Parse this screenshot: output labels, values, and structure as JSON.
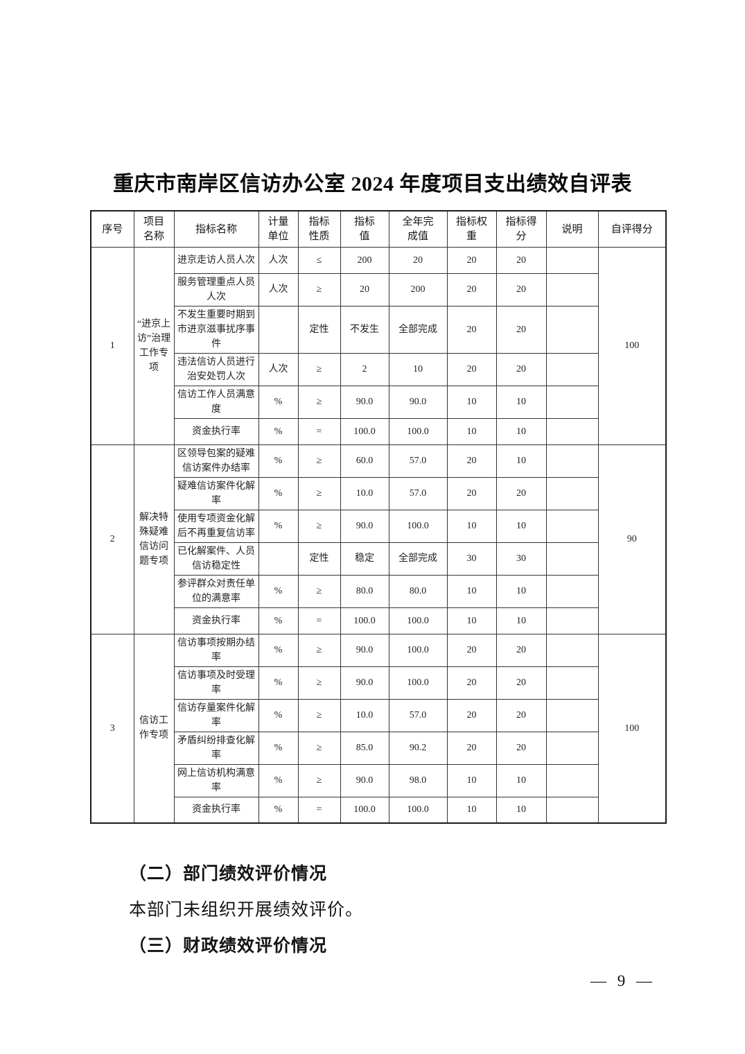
{
  "title": "重庆市南岸区信访办公室 2024 年度项目支出绩效自评表",
  "table": {
    "headers": [
      "序号",
      "项目\n名称",
      "指标名称",
      "计量\n单位",
      "指标\n性质",
      "指标\n值",
      "全年完\n成值",
      "指标权\n重",
      "指标得\n分",
      "说明",
      "自评得分"
    ],
    "groups": [
      {
        "seq": "1",
        "project": "“进京上访”治理工作专项",
        "self_score": "100",
        "rows": [
          {
            "indicator": "进京走访人员人次",
            "unit": "人次",
            "nature": "≤",
            "target": "200",
            "actual": "20",
            "weight": "20",
            "score": "20",
            "note": ""
          },
          {
            "indicator": "服务管理重点人员人次",
            "unit": "人次",
            "nature": "≥",
            "target": "20",
            "actual": "200",
            "weight": "20",
            "score": "20",
            "note": ""
          },
          {
            "indicator": "不发生重要时期到市进京滋事扰序事件",
            "unit": "",
            "nature": "定性",
            "target": "不发生",
            "actual": "全部完成",
            "weight": "20",
            "score": "20",
            "note": ""
          },
          {
            "indicator": "违法信访人员进行治安处罚人次",
            "unit": "人次",
            "nature": "≥",
            "target": "2",
            "actual": "10",
            "weight": "20",
            "score": "20",
            "note": ""
          },
          {
            "indicator": "信访工作人员满意度",
            "unit": "%",
            "nature": "≥",
            "target": "90.0",
            "actual": "90.0",
            "weight": "10",
            "score": "10",
            "note": ""
          },
          {
            "indicator": "资金执行率",
            "unit": "%",
            "nature": "=",
            "target": "100.0",
            "actual": "100.0",
            "weight": "10",
            "score": "10",
            "note": ""
          }
        ]
      },
      {
        "seq": "2",
        "project": "解决特殊疑难信访问题专项",
        "self_score": "90",
        "rows": [
          {
            "indicator": "区领导包案的疑难信访案件办结率",
            "unit": "%",
            "nature": "≥",
            "target": "60.0",
            "actual": "57.0",
            "weight": "20",
            "score": "10",
            "note": ""
          },
          {
            "indicator": "疑难信访案件化解率",
            "unit": "%",
            "nature": "≥",
            "target": "10.0",
            "actual": "57.0",
            "weight": "20",
            "score": "20",
            "note": ""
          },
          {
            "indicator": "使用专项资金化解后不再重复信访率",
            "unit": "%",
            "nature": "≥",
            "target": "90.0",
            "actual": "100.0",
            "weight": "10",
            "score": "10",
            "note": ""
          },
          {
            "indicator": "已化解案件、人员信访稳定性",
            "unit": "",
            "nature": "定性",
            "target": "稳定",
            "actual": "全部完成",
            "weight": "30",
            "score": "30",
            "note": ""
          },
          {
            "indicator": "参评群众对责任单位的满意率",
            "unit": "%",
            "nature": "≥",
            "target": "80.0",
            "actual": "80.0",
            "weight": "10",
            "score": "10",
            "note": ""
          },
          {
            "indicator": "资金执行率",
            "unit": "%",
            "nature": "=",
            "target": "100.0",
            "actual": "100.0",
            "weight": "10",
            "score": "10",
            "note": ""
          }
        ]
      },
      {
        "seq": "3",
        "project": "信访工作专项",
        "self_score": "100",
        "rows": [
          {
            "indicator": "信访事项按期办结率",
            "unit": "%",
            "nature": "≥",
            "target": "90.0",
            "actual": "100.0",
            "weight": "20",
            "score": "20",
            "note": ""
          },
          {
            "indicator": "信访事项及时受理率",
            "unit": "%",
            "nature": "≥",
            "target": "90.0",
            "actual": "100.0",
            "weight": "20",
            "score": "20",
            "note": ""
          },
          {
            "indicator": "信访存量案件化解率",
            "unit": "%",
            "nature": "≥",
            "target": "10.0",
            "actual": "57.0",
            "weight": "20",
            "score": "20",
            "note": ""
          },
          {
            "indicator": "矛盾纠纷排查化解率",
            "unit": "%",
            "nature": "≥",
            "target": "85.0",
            "actual": "90.2",
            "weight": "20",
            "score": "20",
            "note": ""
          },
          {
            "indicator": "网上信访机构满意率",
            "unit": "%",
            "nature": "≥",
            "target": "90.0",
            "actual": "98.0",
            "weight": "10",
            "score": "10",
            "note": ""
          },
          {
            "indicator": "资金执行率",
            "unit": "%",
            "nature": "=",
            "target": "100.0",
            "actual": "100.0",
            "weight": "10",
            "score": "10",
            "note": ""
          }
        ]
      }
    ]
  },
  "sections": {
    "heading_2": "（二）部门绩效评价情况",
    "paragraph_2": "本部门未组织开展绩效评价。",
    "heading_3": "（三）财政绩效评价情况"
  },
  "page_footer": {
    "page_number": "9",
    "display": "— 9 —"
  }
}
